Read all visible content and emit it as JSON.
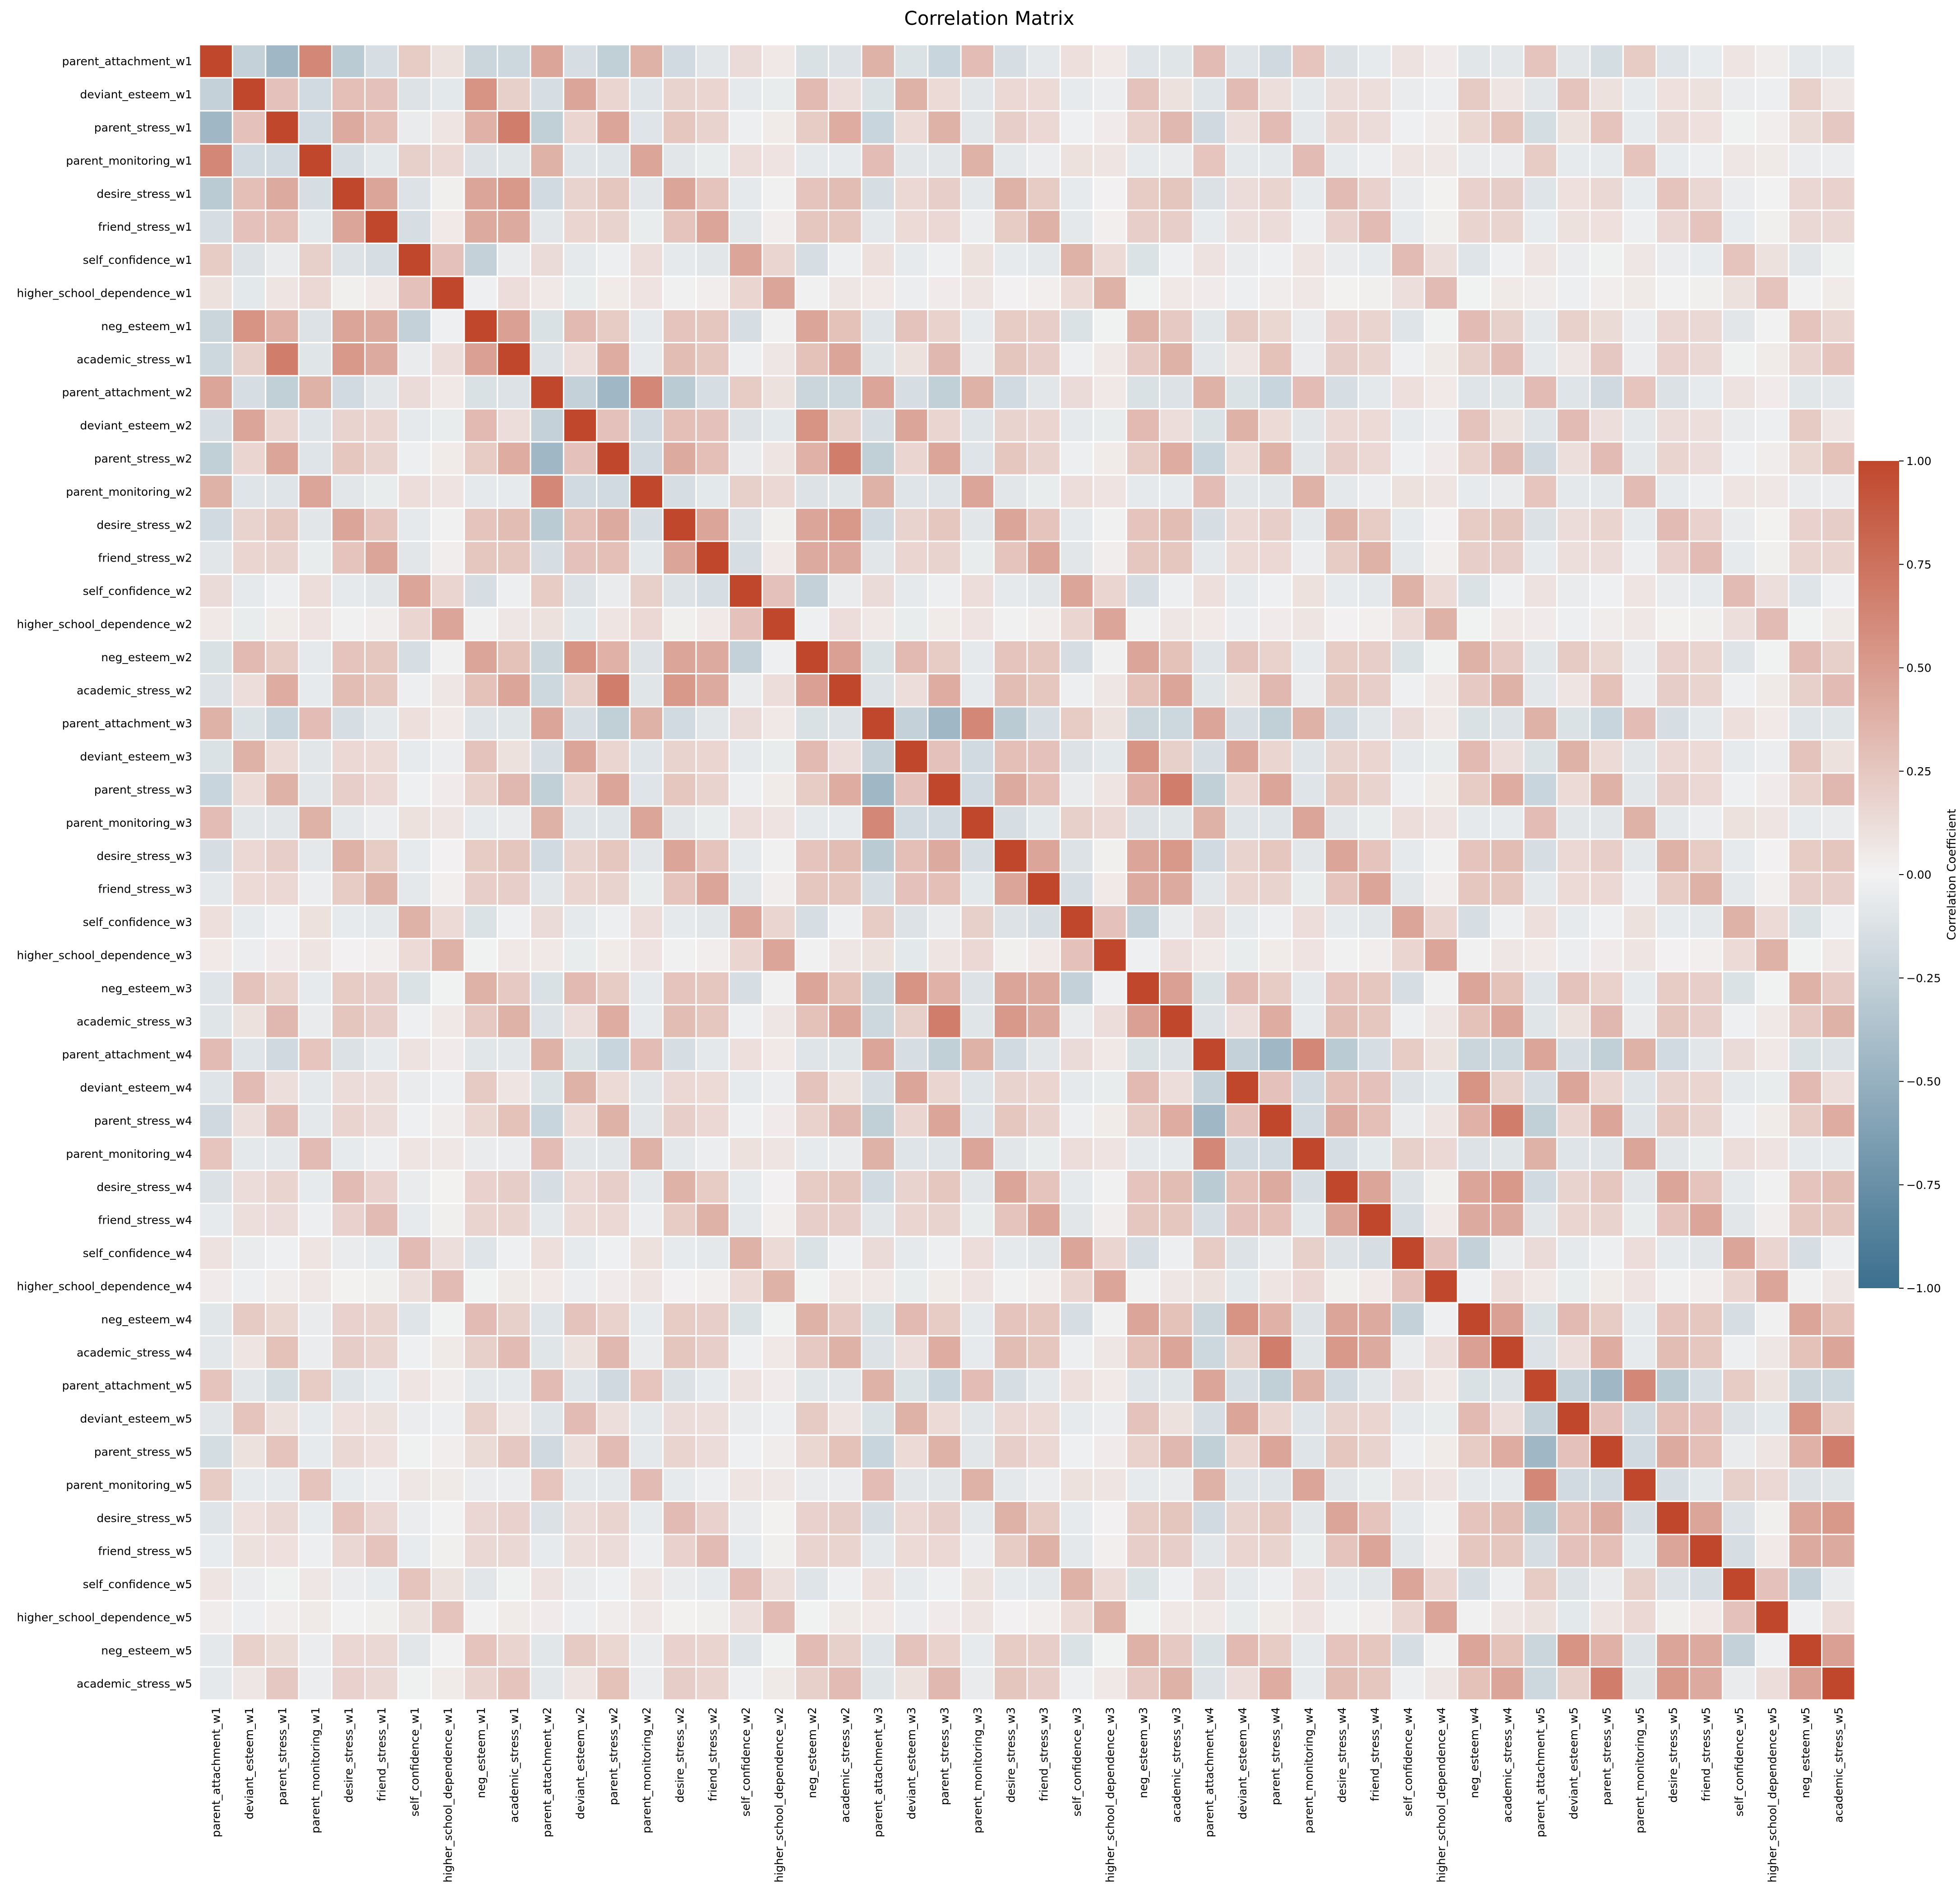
{
  "chart_data": {
    "type": "heatmap",
    "title": "Correlation Matrix",
    "variables": [
      "parent_attachment_w1",
      "deviant_esteem_w1",
      "parent_stress_w1",
      "parent_monitoring_w1",
      "desire_stress_w1",
      "friend_stress_w1",
      "self_confidence_w1",
      "higher_school_dependence_w1",
      "neg_esteem_w1",
      "academic_stress_w1",
      "parent_attachment_w2",
      "deviant_esteem_w2",
      "parent_stress_w2",
      "parent_monitoring_w2",
      "desire_stress_w2",
      "friend_stress_w2",
      "self_confidence_w2",
      "higher_school_dependence_w2",
      "neg_esteem_w2",
      "academic_stress_w2",
      "parent_attachment_w3",
      "deviant_esteem_w3",
      "parent_stress_w3",
      "parent_monitoring_w3",
      "desire_stress_w3",
      "friend_stress_w3",
      "self_confidence_w3",
      "higher_school_dependence_w3",
      "neg_esteem_w3",
      "academic_stress_w3",
      "parent_attachment_w4",
      "deviant_esteem_w4",
      "parent_stress_w4",
      "parent_monitoring_w4",
      "desire_stress_w4",
      "friend_stress_w4",
      "self_confidence_w4",
      "higher_school_dependence_w4",
      "neg_esteem_w4",
      "academic_stress_w4",
      "parent_attachment_w5",
      "deviant_esteem_w5",
      "parent_stress_w5",
      "parent_monitoring_w5",
      "desire_stress_w5",
      "friend_stress_w5",
      "self_confidence_w5",
      "higher_school_dependence_w5",
      "neg_esteem_w5",
      "academic_stress_w5"
    ],
    "construct_correlations": {
      "constructs": [
        "parent_attachment",
        "deviant_esteem",
        "parent_stress",
        "parent_monitoring",
        "desire_stress",
        "friend_stress",
        "self_confidence",
        "higher_school_dependence",
        "neg_esteem",
        "academic_stress"
      ],
      "within_wave": [
        [
          1.0,
          -0.25,
          -0.45,
          0.62,
          -0.3,
          -0.15,
          0.22,
          0.1,
          -0.22,
          -0.2
        ],
        [
          -0.25,
          1.0,
          0.28,
          -0.18,
          0.3,
          0.28,
          -0.12,
          -0.08,
          0.55,
          0.2
        ],
        [
          -0.45,
          0.28,
          1.0,
          -0.18,
          0.42,
          0.3,
          -0.05,
          0.08,
          0.38,
          0.68
        ],
        [
          0.62,
          -0.18,
          -0.18,
          1.0,
          -0.15,
          -0.08,
          0.2,
          0.15,
          -0.12,
          -0.1
        ],
        [
          -0.3,
          0.3,
          0.42,
          -0.15,
          1.0,
          0.45,
          -0.12,
          0.02,
          0.45,
          0.52
        ],
        [
          -0.15,
          0.28,
          0.3,
          -0.08,
          0.45,
          1.0,
          -0.15,
          0.05,
          0.42,
          0.42
        ],
        [
          0.22,
          -0.12,
          -0.05,
          0.2,
          -0.12,
          -0.15,
          1.0,
          0.28,
          -0.25,
          -0.05
        ],
        [
          0.1,
          -0.08,
          0.08,
          0.15,
          0.02,
          0.05,
          0.28,
          1.0,
          -0.02,
          0.12
        ],
        [
          -0.22,
          0.55,
          0.38,
          -0.12,
          0.45,
          0.42,
          -0.25,
          -0.02,
          1.0,
          0.48
        ],
        [
          -0.2,
          0.2,
          0.68,
          -0.1,
          0.52,
          0.42,
          -0.05,
          0.12,
          0.48,
          1.0
        ]
      ],
      "lag_attenuation": [
        1.0,
        0.6,
        0.5,
        0.42,
        0.36
      ]
    },
    "value_range": [
      -1.0,
      1.0
    ],
    "colorbar": {
      "label": "Correlation Coefficient",
      "ticks": [
        "1.00",
        "0.75",
        "0.50",
        "0.25",
        "0.00",
        "−0.25",
        "−0.50",
        "−0.75",
        "−1.00"
      ],
      "tick_values": [
        1.0,
        0.75,
        0.5,
        0.25,
        0.0,
        -0.25,
        -0.5,
        -0.75,
        -1.0
      ],
      "colors": {
        "negative": "#3b6f8e",
        "neutral": "#f2f2f2",
        "positive": "#c0472c"
      }
    },
    "grid_lines": "white"
  }
}
